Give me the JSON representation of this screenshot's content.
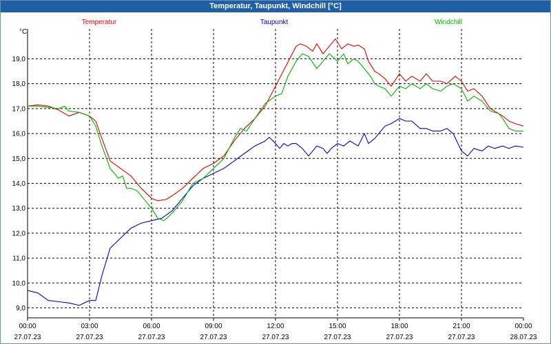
{
  "window": {
    "title": "Temperatur, Taupunkt, Windchill [°C]"
  },
  "chart_data": {
    "type": "line",
    "title": "Temperatur, Taupunkt, Windchill [°C]",
    "ylabel": "°C",
    "ylim": [
      8.6,
      20.2
    ],
    "yticks": [
      "9,0",
      "10,0",
      "11,0",
      "12,0",
      "13,0",
      "14,0",
      "15,0",
      "16,0",
      "17,0",
      "18,0",
      "19,0"
    ],
    "xlim": [
      0,
      24
    ],
    "xticks": [
      {
        "time": "00:00",
        "date": "27.07.23"
      },
      {
        "time": "03:00",
        "date": "27.07.23"
      },
      {
        "time": "06:00",
        "date": "27.07.23"
      },
      {
        "time": "09:00",
        "date": "27.07.23"
      },
      {
        "time": "12:00",
        "date": "27.07.23"
      },
      {
        "time": "15:00",
        "date": "27.07.23"
      },
      {
        "time": "18:00",
        "date": "27.07.23"
      },
      {
        "time": "21:00",
        "date": "27.07.23"
      },
      {
        "time": "00:00",
        "date": "28.07.23"
      }
    ],
    "grid": true,
    "legend_position": "top",
    "series": [
      {
        "name": "Temperatur",
        "color": "#e00000",
        "points": [
          [
            0,
            17.1
          ],
          [
            0.5,
            17.15
          ],
          [
            1,
            17.1
          ],
          [
            1.5,
            16.95
          ],
          [
            2,
            16.7
          ],
          [
            2.5,
            16.85
          ],
          [
            3,
            16.7
          ],
          [
            3.3,
            16.5
          ],
          [
            3.6,
            15.8
          ],
          [
            4,
            14.9
          ],
          [
            4.5,
            14.6
          ],
          [
            5,
            14.3
          ],
          [
            5.5,
            13.8
          ],
          [
            6,
            13.4
          ],
          [
            6.3,
            13.3
          ],
          [
            6.7,
            13.35
          ],
          [
            7,
            13.5
          ],
          [
            7.5,
            13.8
          ],
          [
            8,
            14.2
          ],
          [
            8.5,
            14.6
          ],
          [
            9,
            14.8
          ],
          [
            9.5,
            15.1
          ],
          [
            10,
            15.7
          ],
          [
            10.5,
            16.2
          ],
          [
            11,
            16.6
          ],
          [
            11.5,
            17.1
          ],
          [
            12,
            17.9
          ],
          [
            12.5,
            18.7
          ],
          [
            13,
            19.5
          ],
          [
            13.2,
            19.6
          ],
          [
            13.5,
            19.5
          ],
          [
            13.8,
            19.3
          ],
          [
            14,
            19.6
          ],
          [
            14.3,
            19.2
          ],
          [
            14.6,
            19.5
          ],
          [
            14.9,
            19.8
          ],
          [
            15.2,
            19.4
          ],
          [
            15.5,
            19.6
          ],
          [
            15.8,
            19.5
          ],
          [
            16,
            19.55
          ],
          [
            16.3,
            19.4
          ],
          [
            16.5,
            18.9
          ],
          [
            16.8,
            18.5
          ],
          [
            17,
            18.4
          ],
          [
            17.3,
            18.2
          ],
          [
            17.6,
            17.9
          ],
          [
            18,
            18.4
          ],
          [
            18.3,
            18.1
          ],
          [
            18.6,
            18.3
          ],
          [
            19,
            18.1
          ],
          [
            19.3,
            18.4
          ],
          [
            19.6,
            18.1
          ],
          [
            20,
            18.1
          ],
          [
            20.3,
            18.0
          ],
          [
            20.7,
            18.3
          ],
          [
            21,
            18.1
          ],
          [
            21.3,
            17.7
          ],
          [
            21.6,
            17.8
          ],
          [
            22,
            17.5
          ],
          [
            22.4,
            17.0
          ],
          [
            23,
            16.7
          ],
          [
            23.3,
            16.5
          ],
          [
            23.6,
            16.4
          ],
          [
            24,
            16.3
          ]
        ]
      },
      {
        "name": "Taupunkt",
        "color": "#0000c0",
        "points": [
          [
            0,
            9.7
          ],
          [
            0.5,
            9.6
          ],
          [
            1,
            9.3
          ],
          [
            1.5,
            9.25
          ],
          [
            2,
            9.2
          ],
          [
            2.5,
            9.1
          ],
          [
            3,
            9.3
          ],
          [
            3.3,
            9.3
          ],
          [
            3.6,
            10.3
          ],
          [
            4,
            11.4
          ],
          [
            4.5,
            11.8
          ],
          [
            5,
            12.2
          ],
          [
            5.5,
            12.4
          ],
          [
            6,
            12.5
          ],
          [
            6.5,
            12.6
          ],
          [
            7,
            12.9
          ],
          [
            7.5,
            13.4
          ],
          [
            8,
            13.9
          ],
          [
            8.5,
            14.2
          ],
          [
            9,
            14.4
          ],
          [
            9.5,
            14.6
          ],
          [
            10,
            14.9
          ],
          [
            10.5,
            15.2
          ],
          [
            11,
            15.5
          ],
          [
            11.5,
            15.7
          ],
          [
            11.7,
            15.85
          ],
          [
            12,
            15.6
          ],
          [
            12.2,
            15.4
          ],
          [
            12.4,
            15.6
          ],
          [
            12.6,
            15.5
          ],
          [
            12.8,
            15.6
          ],
          [
            13,
            15.6
          ],
          [
            13.3,
            15.4
          ],
          [
            13.6,
            15.1
          ],
          [
            14,
            15.5
          ],
          [
            14.3,
            15.4
          ],
          [
            14.5,
            15.2
          ],
          [
            14.7,
            15.4
          ],
          [
            15,
            15.6
          ],
          [
            15.3,
            15.5
          ],
          [
            15.6,
            15.7
          ],
          [
            16,
            15.5
          ],
          [
            16.3,
            16.0
          ],
          [
            16.5,
            15.6
          ],
          [
            16.8,
            15.8
          ],
          [
            17,
            16.0
          ],
          [
            17.3,
            16.3
          ],
          [
            17.6,
            16.4
          ],
          [
            18,
            16.6
          ],
          [
            18.3,
            16.5
          ],
          [
            18.6,
            16.5
          ],
          [
            19,
            16.2
          ],
          [
            19.3,
            16.2
          ],
          [
            19.6,
            16.1
          ],
          [
            20,
            16.1
          ],
          [
            20.3,
            16.2
          ],
          [
            20.6,
            16.0
          ],
          [
            21,
            15.3
          ],
          [
            21.3,
            15.1
          ],
          [
            21.6,
            15.4
          ],
          [
            22,
            15.3
          ],
          [
            22.3,
            15.5
          ],
          [
            22.6,
            15.4
          ],
          [
            23,
            15.5
          ],
          [
            23.3,
            15.4
          ],
          [
            23.6,
            15.5
          ],
          [
            24,
            15.45
          ]
        ]
      },
      {
        "name": "Windchill",
        "color": "#00b000",
        "points": [
          [
            0,
            17.1
          ],
          [
            0.5,
            17.1
          ],
          [
            1,
            17.05
          ],
          [
            1.5,
            17.0
          ],
          [
            1.8,
            17.1
          ],
          [
            2,
            16.9
          ],
          [
            2.5,
            16.85
          ],
          [
            3,
            16.7
          ],
          [
            3.3,
            16.3
          ],
          [
            3.6,
            15.5
          ],
          [
            4,
            14.6
          ],
          [
            4.4,
            14.2
          ],
          [
            4.6,
            14.3
          ],
          [
            4.8,
            13.8
          ],
          [
            5,
            13.8
          ],
          [
            5.3,
            13.7
          ],
          [
            5.6,
            13.4
          ],
          [
            6,
            13.0
          ],
          [
            6.3,
            12.6
          ],
          [
            6.6,
            12.5
          ],
          [
            7,
            12.8
          ],
          [
            7.5,
            13.3
          ],
          [
            8,
            14.0
          ],
          [
            8.5,
            14.2
          ],
          [
            9,
            14.6
          ],
          [
            9.5,
            15.0
          ],
          [
            10,
            15.8
          ],
          [
            10.3,
            16.2
          ],
          [
            10.6,
            16.1
          ],
          [
            11,
            16.6
          ],
          [
            11.5,
            17.2
          ],
          [
            12,
            17.5
          ],
          [
            12.3,
            17.6
          ],
          [
            12.6,
            18.3
          ],
          [
            13,
            18.9
          ],
          [
            13.3,
            19.2
          ],
          [
            13.6,
            19.1
          ],
          [
            14,
            18.6
          ],
          [
            14.3,
            18.9
          ],
          [
            14.6,
            19.2
          ],
          [
            15,
            18.9
          ],
          [
            15.3,
            19.2
          ],
          [
            15.5,
            18.8
          ],
          [
            15.8,
            19.0
          ],
          [
            16,
            18.9
          ],
          [
            16.3,
            18.6
          ],
          [
            16.6,
            18.3
          ],
          [
            16.8,
            18.0
          ],
          [
            17,
            17.9
          ],
          [
            17.3,
            17.8
          ],
          [
            17.6,
            17.5
          ],
          [
            18,
            17.9
          ],
          [
            18.3,
            17.8
          ],
          [
            18.6,
            18.0
          ],
          [
            19,
            17.8
          ],
          [
            19.3,
            18.0
          ],
          [
            19.6,
            17.8
          ],
          [
            20,
            17.7
          ],
          [
            20.3,
            17.9
          ],
          [
            20.6,
            18.0
          ],
          [
            21,
            17.8
          ],
          [
            21.3,
            17.3
          ],
          [
            21.6,
            17.5
          ],
          [
            22,
            17.3
          ],
          [
            22.4,
            16.9
          ],
          [
            22.8,
            16.8
          ],
          [
            23,
            16.6
          ],
          [
            23.3,
            16.2
          ],
          [
            23.6,
            16.1
          ],
          [
            24,
            16.1
          ]
        ]
      }
    ]
  }
}
